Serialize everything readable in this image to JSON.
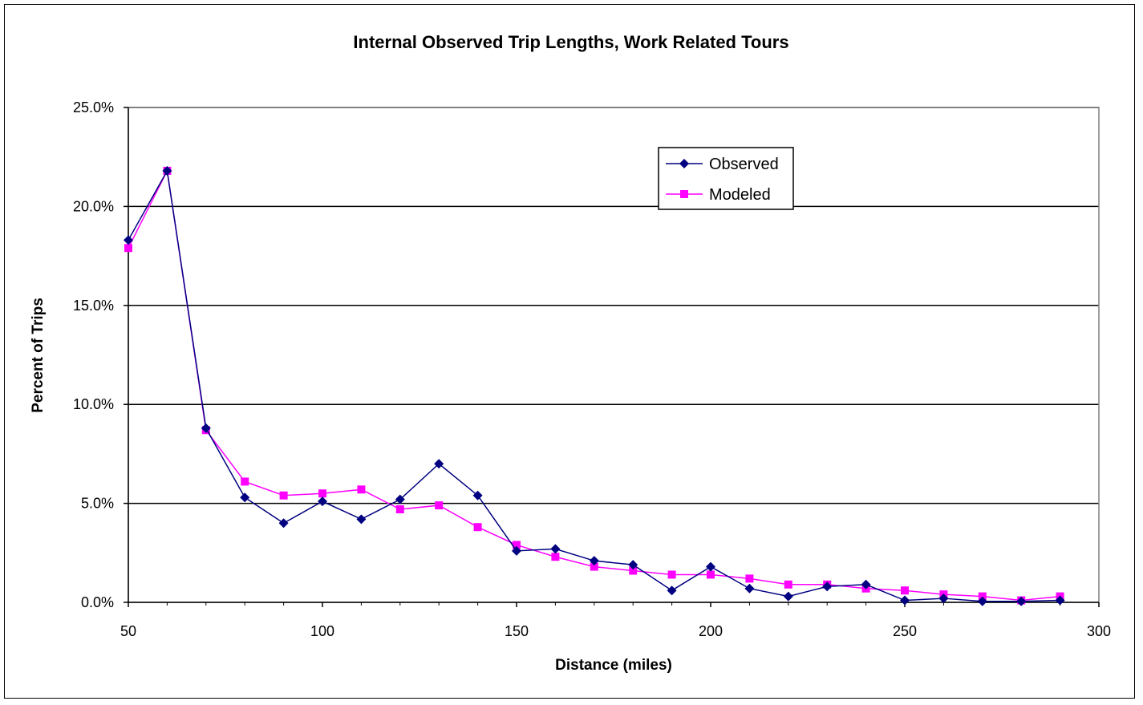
{
  "chart_data": {
    "type": "line",
    "title": "Internal Observed Trip Lengths, Work Related Tours",
    "xlabel": "Distance (miles)",
    "ylabel": "Percent of Trips",
    "xlim": [
      50,
      300
    ],
    "ylim": [
      0,
      0.25
    ],
    "x_ticks": [
      50,
      100,
      150,
      200,
      250,
      300
    ],
    "y_ticks": [
      0,
      0.05,
      0.1,
      0.15,
      0.2,
      0.25
    ],
    "x_tick_labels": [
      "50",
      "100",
      "150",
      "200",
      "250",
      "300"
    ],
    "y_tick_labels": [
      "0.0%",
      "5.0%",
      "10.0%",
      "15.0%",
      "20.0%",
      "25.0%"
    ],
    "grid": "horizontal",
    "legend_position": "top-right",
    "series": [
      {
        "name": "Observed",
        "color": "#000080",
        "marker": "diamond",
        "x": [
          50,
          60,
          70,
          80,
          90,
          100,
          110,
          120,
          130,
          140,
          150,
          160,
          170,
          180,
          190,
          200,
          210,
          220,
          230,
          240,
          250,
          260,
          270,
          280,
          290
        ],
        "values": [
          0.183,
          0.218,
          0.088,
          0.053,
          0.04,
          0.051,
          0.042,
          0.052,
          0.07,
          0.054,
          0.026,
          0.027,
          0.021,
          0.019,
          0.006,
          0.018,
          0.007,
          0.003,
          0.008,
          0.009,
          0.001,
          0.002,
          0.0005,
          0.0005,
          0.001
        ]
      },
      {
        "name": "Modeled",
        "color": "#ff00ff",
        "marker": "square",
        "x": [
          50,
          60,
          70,
          80,
          90,
          100,
          110,
          120,
          130,
          140,
          150,
          160,
          170,
          180,
          190,
          200,
          210,
          220,
          230,
          240,
          250,
          260,
          270,
          280,
          290
        ],
        "values": [
          0.179,
          0.218,
          0.087,
          0.061,
          0.054,
          0.055,
          0.057,
          0.047,
          0.049,
          0.038,
          0.029,
          0.023,
          0.018,
          0.016,
          0.014,
          0.014,
          0.012,
          0.009,
          0.009,
          0.007,
          0.006,
          0.004,
          0.003,
          0.001,
          0.003
        ]
      }
    ]
  }
}
